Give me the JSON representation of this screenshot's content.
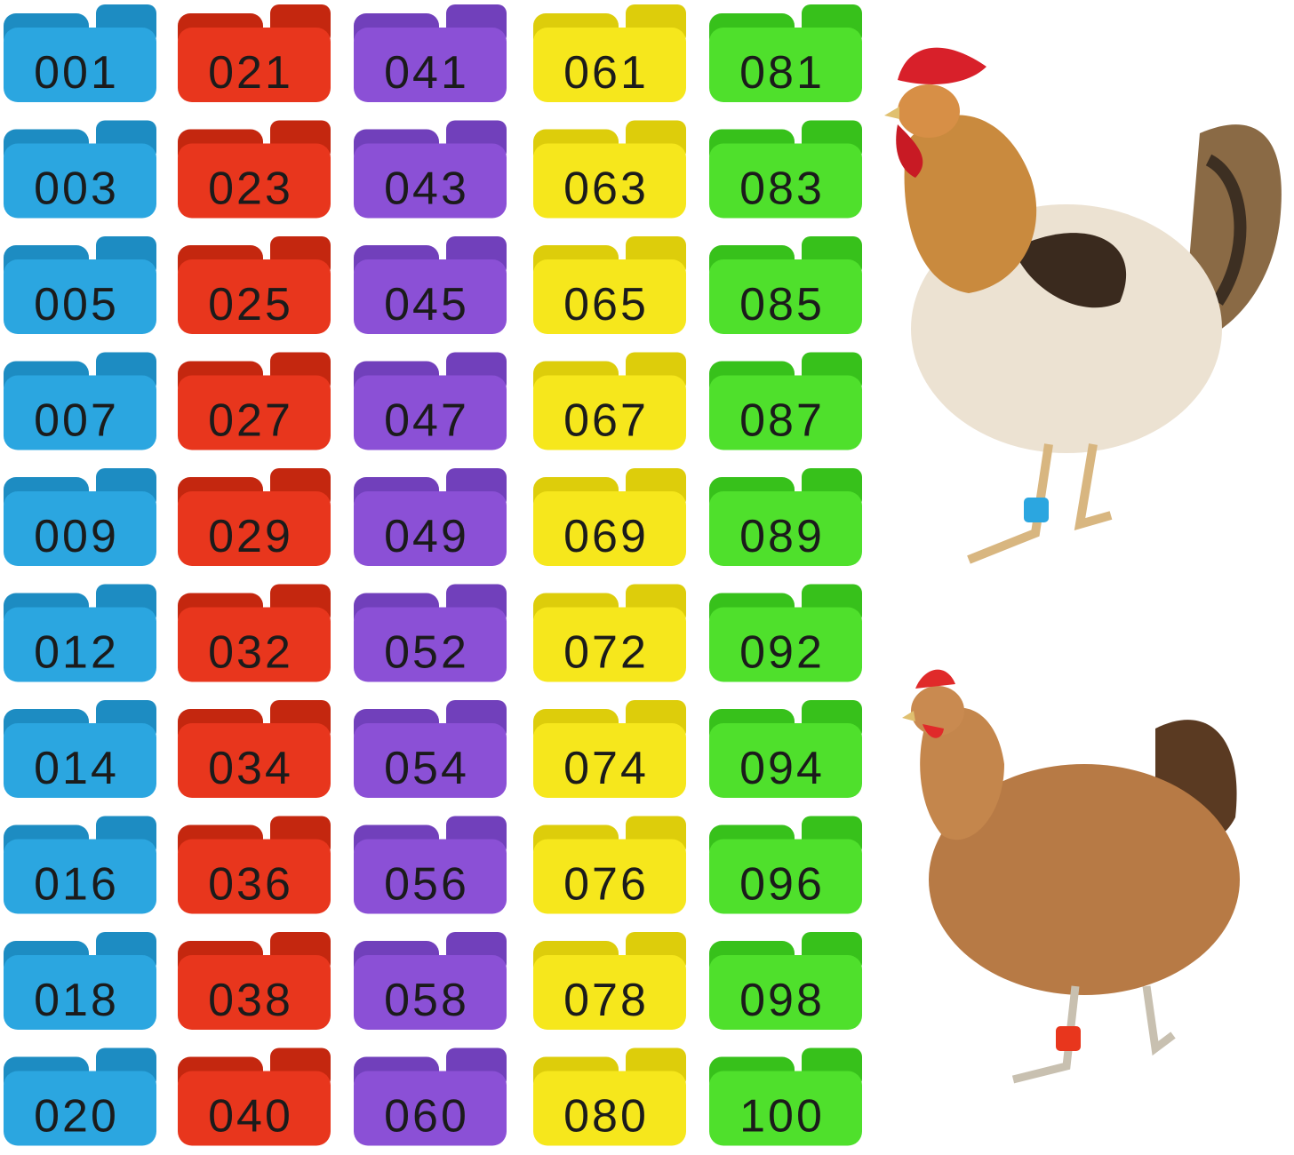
{
  "columns": [
    {
      "color": "#2ba6e0",
      "shade": "#1d8cc2",
      "labels": [
        "001",
        "003",
        "005",
        "007",
        "009",
        "012",
        "014",
        "016",
        "018",
        "020"
      ]
    },
    {
      "color": "#e8361d",
      "shade": "#c4270f",
      "labels": [
        "021",
        "023",
        "025",
        "027",
        "029",
        "032",
        "034",
        "036",
        "038",
        "040"
      ]
    },
    {
      "color": "#8b50d6",
      "shade": "#7140bb",
      "labels": [
        "041",
        "043",
        "045",
        "047",
        "049",
        "052",
        "054",
        "056",
        "058",
        "060"
      ]
    },
    {
      "color": "#f6e71c",
      "shade": "#ddcd0b",
      "labels": [
        "061",
        "063",
        "065",
        "067",
        "069",
        "072",
        "074",
        "076",
        "078",
        "080"
      ]
    },
    {
      "color": "#4fe02c",
      "shade": "#37c11b",
      "labels": [
        "081",
        "083",
        "085",
        "087",
        "089",
        "092",
        "094",
        "096",
        "098",
        "100"
      ]
    }
  ]
}
